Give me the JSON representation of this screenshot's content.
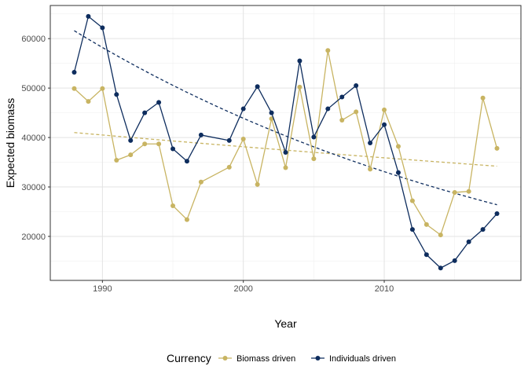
{
  "chart_data": {
    "type": "line",
    "xlabel": "Year",
    "ylabel": "Expected biomass",
    "xlim": [
      1986.3,
      2019.7
    ],
    "ylim": [
      11100,
      66700
    ],
    "x_ticks": [
      1990,
      2000,
      2010
    ],
    "x_minor_ticks": [
      1995,
      2005,
      2015
    ],
    "y_ticks": [
      20000,
      30000,
      40000,
      50000,
      60000
    ],
    "y_minor_ticks": [
      15000,
      25000,
      35000,
      45000,
      55000,
      65000
    ],
    "grid": true,
    "legend": {
      "title": "Currency",
      "position": "bottom"
    },
    "series": [
      {
        "name": "Biomass driven",
        "color": "#C8B462",
        "x": [
          1988,
          1989,
          1990,
          1991,
          1992,
          1993,
          1994,
          1995,
          1996,
          1997,
          1999,
          2000,
          2001,
          2002,
          2003,
          2004,
          2005,
          2006,
          2007,
          2008,
          2009,
          2010,
          2011,
          2012,
          2013,
          2014,
          2015,
          2016,
          2017,
          2018
        ],
        "y": [
          49900,
          47300,
          49900,
          35400,
          36500,
          38700,
          38700,
          26200,
          23400,
          31000,
          34000,
          39700,
          30500,
          43800,
          33900,
          50200,
          35700,
          57600,
          43500,
          45200,
          33600,
          45600,
          38200,
          27200,
          22400,
          20300,
          28900,
          29100,
          48000,
          37800
        ],
        "trend": [
          41000,
          34200
        ]
      },
      {
        "name": "Individuals driven",
        "color": "#0E2D5E",
        "x": [
          1988,
          1989,
          1990,
          1991,
          1992,
          1993,
          1994,
          1995,
          1996,
          1997,
          1999,
          2000,
          2001,
          2002,
          2003,
          2004,
          2005,
          2006,
          2007,
          2008,
          2009,
          2010,
          2011,
          2012,
          2013,
          2014,
          2015,
          2016,
          2017,
          2018
        ],
        "y": [
          53200,
          64500,
          62200,
          48700,
          39400,
          45000,
          47100,
          37700,
          35200,
          40500,
          39400,
          45800,
          50300,
          45000,
          37000,
          55500,
          40100,
          45800,
          48200,
          50500,
          38900,
          42600,
          32900,
          21400,
          16300,
          13600,
          15100,
          18900,
          21400,
          24600
        ],
        "trend": [
          61600,
          26400
        ]
      }
    ]
  }
}
